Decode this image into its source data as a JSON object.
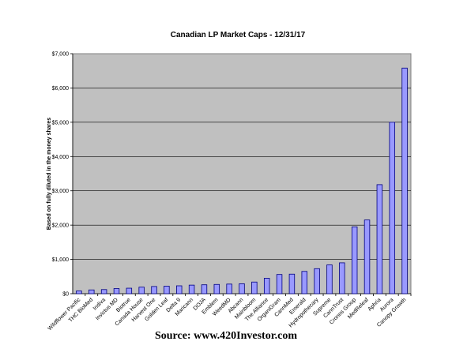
{
  "chart_data": {
    "type": "bar",
    "title": "Canadian LP Market Caps - 12/31/17",
    "xlabel": "",
    "ylabel": "Based on fully diluted in the money shares",
    "ylim": [
      0,
      7000
    ],
    "yticks": [
      0,
      1000,
      2000,
      3000,
      4000,
      5000,
      6000,
      7000
    ],
    "ytick_labels": [
      "$0",
      "$1,000",
      "$2,000",
      "$3,000",
      "$4,000",
      "$5,000",
      "$6,000",
      "$7,000"
    ],
    "categories": [
      "Wildflower Pacific",
      "THC BioMed",
      "Indiva",
      "Invictus MD",
      "Biotrue",
      "Canada House",
      "Harvest One",
      "Golden Leaf",
      "Delta 9",
      "Maricann",
      "DOJA",
      "Emblem",
      "WeedMD",
      "Abcann",
      "Mainbloom",
      "The Alliance",
      "OrganiGram",
      "CannMed",
      "Emerald",
      "Hydropothecary",
      "Supreme",
      "CannTrust",
      "Cronos Group",
      "MedReleaf",
      "Aphria",
      "Aurora",
      "Canopy Growth"
    ],
    "values": [
      80,
      110,
      120,
      150,
      160,
      190,
      210,
      220,
      230,
      250,
      260,
      270,
      280,
      290,
      340,
      450,
      560,
      570,
      650,
      730,
      840,
      900,
      1950,
      2150,
      3180,
      5000,
      6580
    ],
    "grid": true,
    "legend": "none",
    "colors": {
      "plot_background": "#c0c0c0",
      "bar_fill": "#9999ff",
      "bar_stroke": "#000080"
    }
  },
  "footer": {
    "source": "Source: www.420Investor.com"
  }
}
